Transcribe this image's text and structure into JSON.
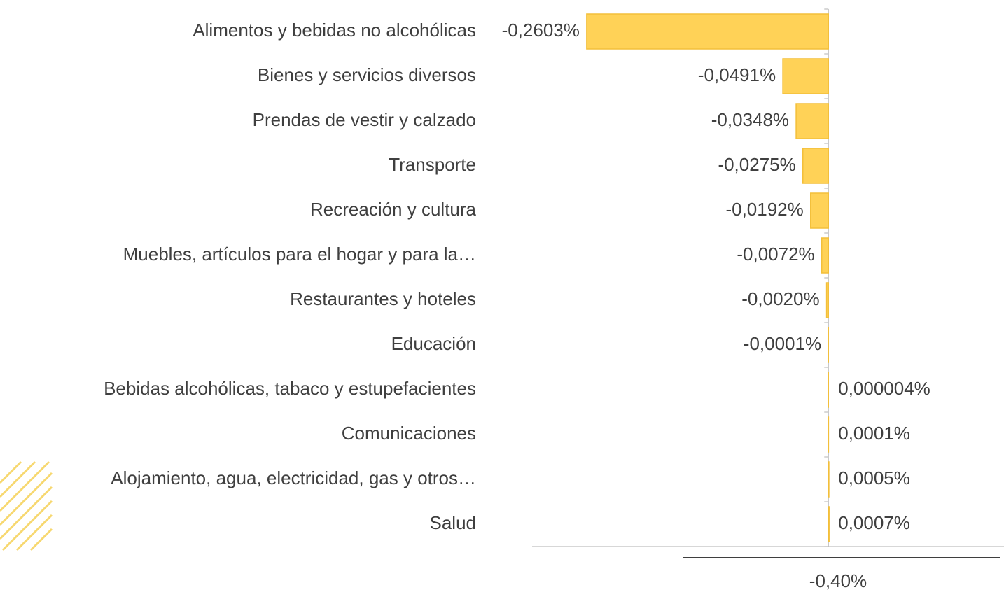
{
  "chart_data": {
    "type": "bar",
    "orientation": "horizontal",
    "categories": [
      "Alimentos y bebidas no alcohólicas",
      "Bienes y servicios diversos",
      "Prendas de vestir y calzado",
      "Transporte",
      "Recreación y cultura",
      "Muebles, artículos para el hogar y para la…",
      "Restaurantes y hoteles",
      "Educación",
      "Bebidas alcohólicas, tabaco y estupefacientes",
      "Comunicaciones",
      "Alojamiento, agua, electricidad, gas y otros…",
      "Salud"
    ],
    "values": [
      -0.2603,
      -0.0491,
      -0.0348,
      -0.0275,
      -0.0192,
      -0.0072,
      -0.002,
      -0.0001,
      4e-06,
      0.0001,
      0.0005,
      0.0007
    ],
    "value_labels": [
      "-0,2603%",
      "-0,0491%",
      "-0,0348%",
      "-0,0275%",
      "-0,0192%",
      "-0,0072%",
      "-0,0020%",
      "-0,0001%",
      "0,000004%",
      "0,0001%",
      "0,0005%",
      "0,0007%"
    ],
    "color": "#ffd257",
    "xlim": [
      -0.319,
      0.189
    ],
    "annotation": "-0,40%"
  }
}
